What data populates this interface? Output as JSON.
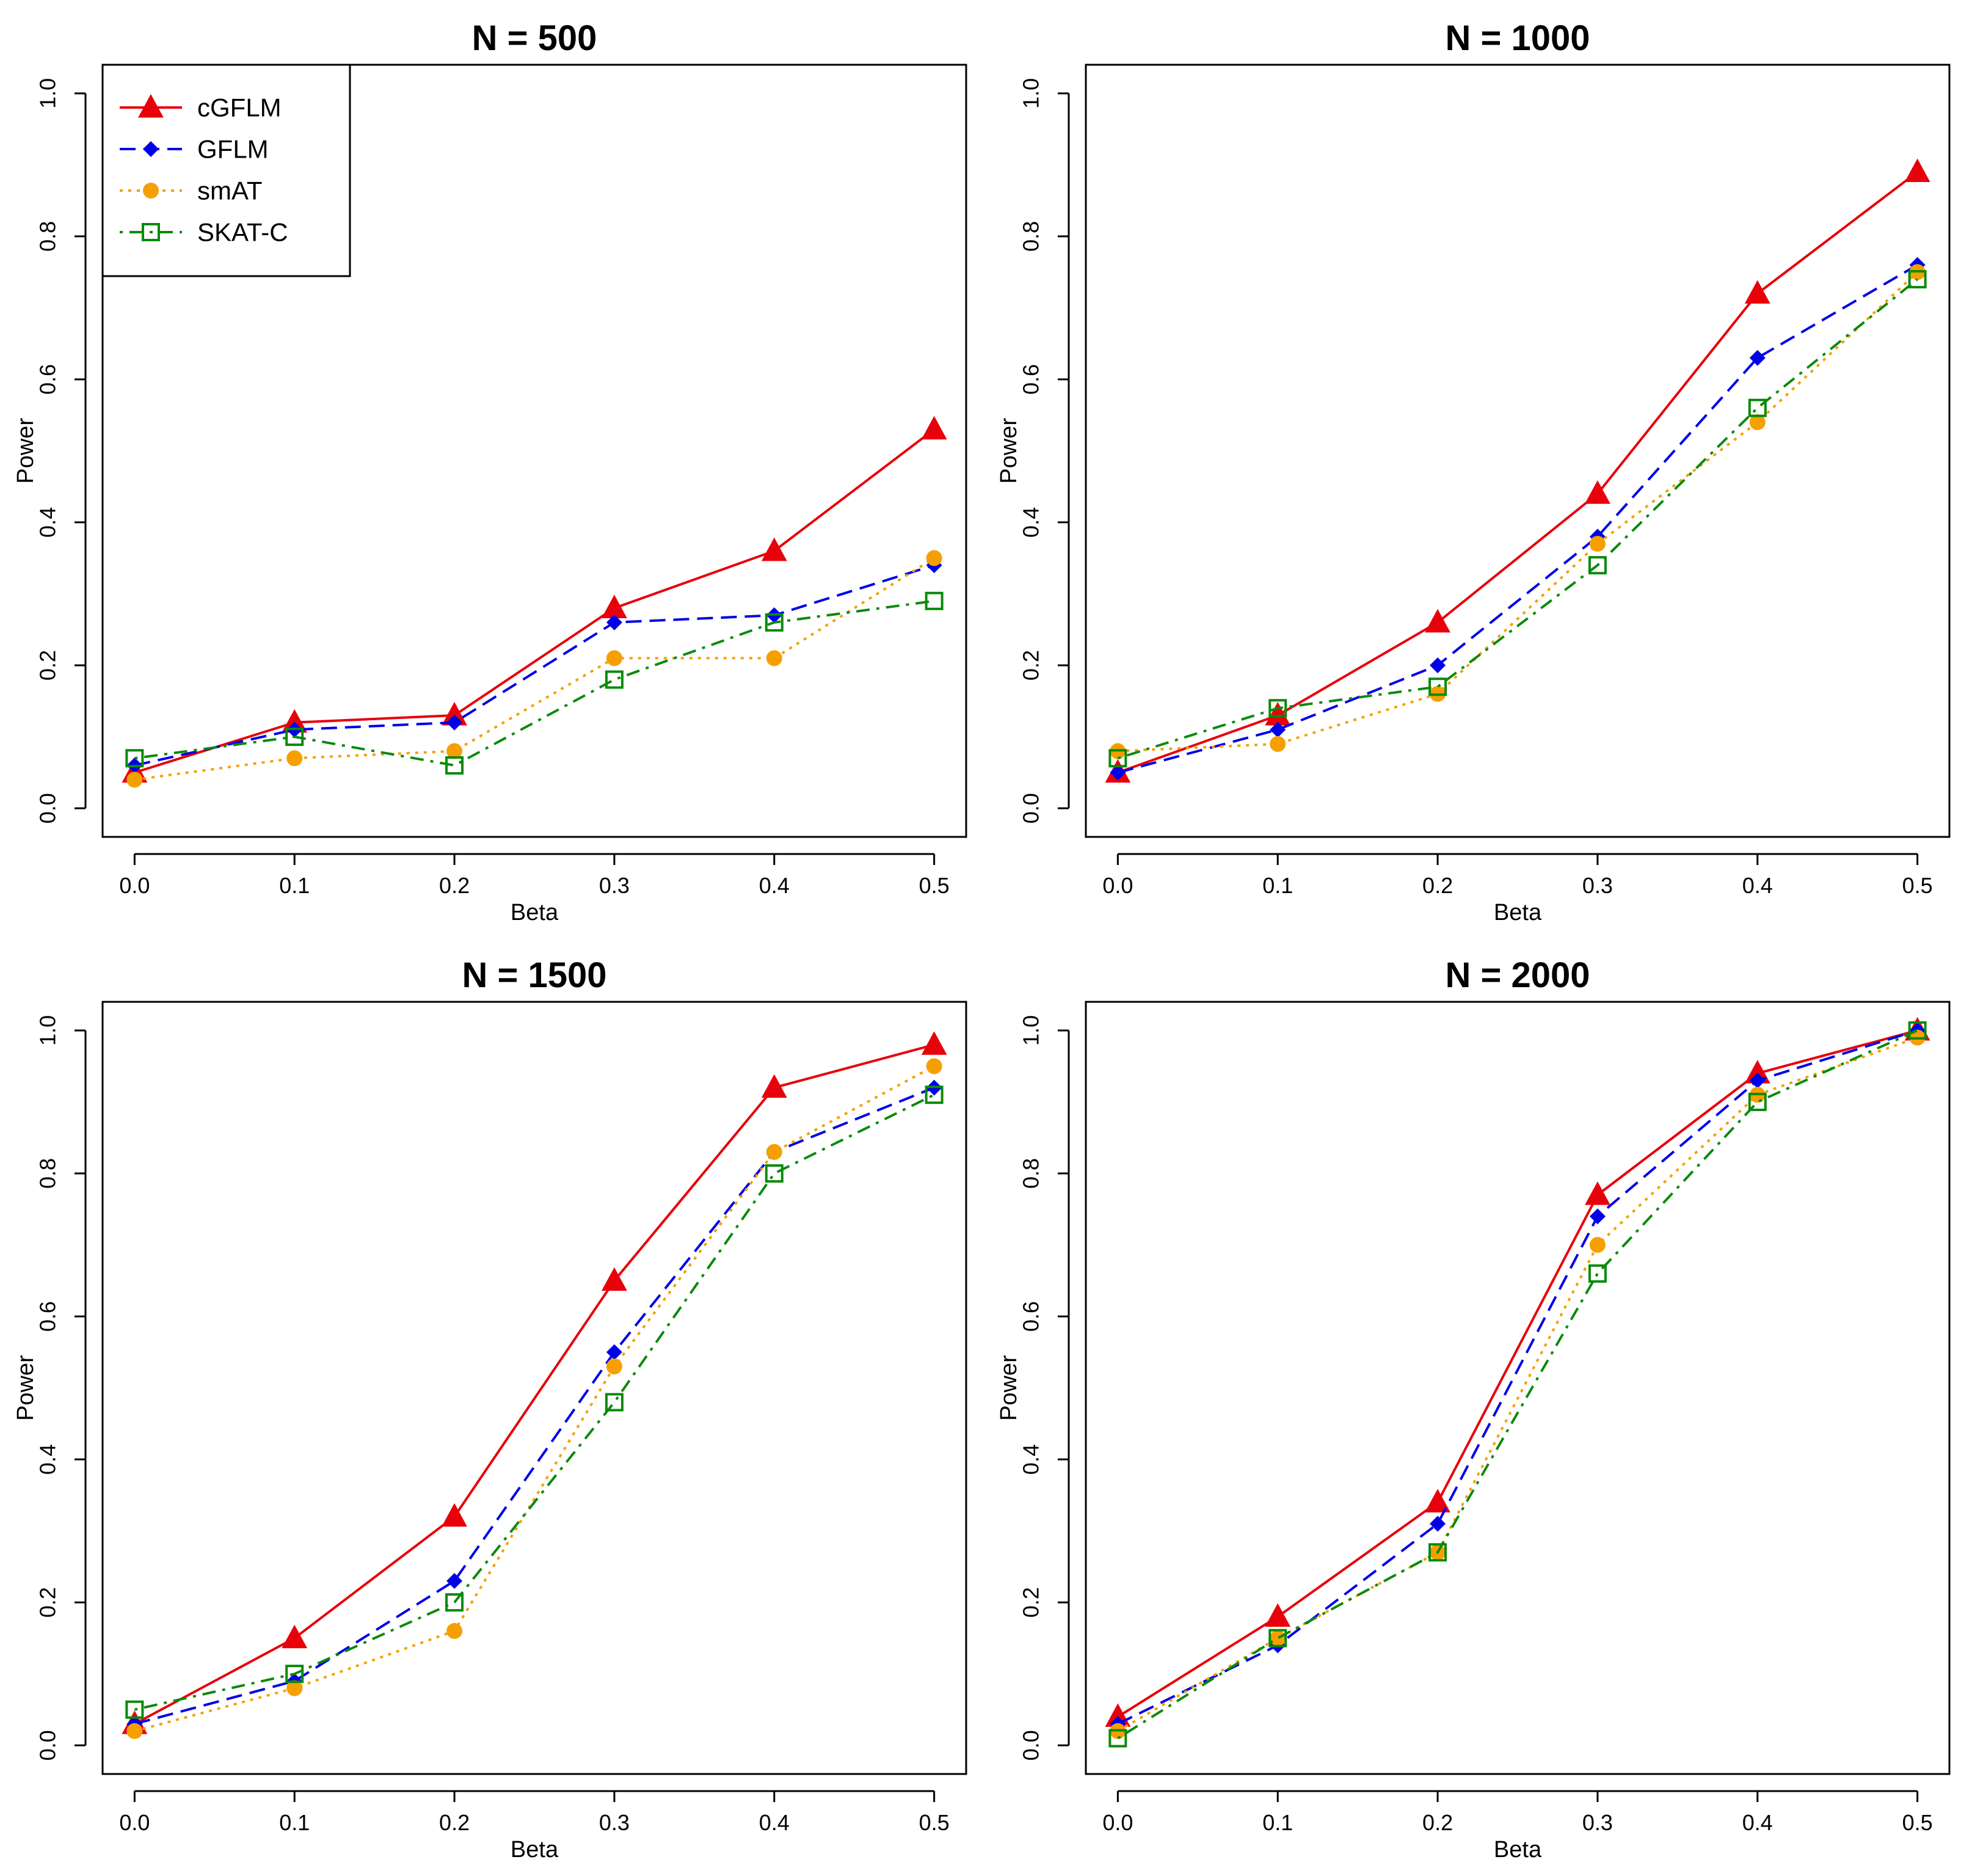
{
  "chart_data": [
    {
      "type": "line",
      "title": "N = 500",
      "xlabel": "Beta",
      "ylabel": "Power",
      "x": [
        0.0,
        0.1,
        0.2,
        0.3,
        0.4,
        0.5
      ],
      "xlim": [
        0.0,
        0.5
      ],
      "ylim": [
        0.0,
        1.0
      ],
      "xticks": [
        "0.0",
        "0.1",
        "0.2",
        "0.3",
        "0.4",
        "0.5"
      ],
      "yticks": [
        "0.0",
        "0.2",
        "0.4",
        "0.6",
        "0.8",
        "1.0"
      ],
      "legend": "top-left",
      "series": [
        {
          "name": "cGFLM",
          "values": [
            0.05,
            0.12,
            0.13,
            0.28,
            0.36,
            0.53
          ]
        },
        {
          "name": "GFLM",
          "values": [
            0.06,
            0.11,
            0.12,
            0.26,
            0.27,
            0.34
          ]
        },
        {
          "name": "smAT",
          "values": [
            0.04,
            0.07,
            0.08,
            0.21,
            0.21,
            0.35
          ]
        },
        {
          "name": "SKAT-C",
          "values": [
            0.07,
            0.1,
            0.06,
            0.18,
            0.26,
            0.29
          ]
        }
      ]
    },
    {
      "type": "line",
      "title": "N = 1000",
      "xlabel": "Beta",
      "ylabel": "Power",
      "x": [
        0.0,
        0.1,
        0.2,
        0.3,
        0.4,
        0.5
      ],
      "xlim": [
        0.0,
        0.5
      ],
      "ylim": [
        0.0,
        1.0
      ],
      "xticks": [
        "0.0",
        "0.1",
        "0.2",
        "0.3",
        "0.4",
        "0.5"
      ],
      "yticks": [
        "0.0",
        "0.2",
        "0.4",
        "0.6",
        "0.8",
        "1.0"
      ],
      "legend": "none",
      "series": [
        {
          "name": "cGFLM",
          "values": [
            0.05,
            0.13,
            0.26,
            0.44,
            0.72,
            0.89
          ]
        },
        {
          "name": "GFLM",
          "values": [
            0.05,
            0.11,
            0.2,
            0.38,
            0.63,
            0.76
          ]
        },
        {
          "name": "smAT",
          "values": [
            0.08,
            0.09,
            0.16,
            0.37,
            0.54,
            0.75
          ]
        },
        {
          "name": "SKAT-C",
          "values": [
            0.07,
            0.14,
            0.17,
            0.34,
            0.56,
            0.74
          ]
        }
      ]
    },
    {
      "type": "line",
      "title": "N = 1500",
      "xlabel": "Beta",
      "ylabel": "Power",
      "x": [
        0.0,
        0.1,
        0.2,
        0.3,
        0.4,
        0.5
      ],
      "xlim": [
        0.0,
        0.5
      ],
      "ylim": [
        0.0,
        1.0
      ],
      "xticks": [
        "0.0",
        "0.1",
        "0.2",
        "0.3",
        "0.4",
        "0.5"
      ],
      "yticks": [
        "0.0",
        "0.2",
        "0.4",
        "0.6",
        "0.8",
        "1.0"
      ],
      "legend": "none",
      "series": [
        {
          "name": "cGFLM",
          "values": [
            0.03,
            0.15,
            0.32,
            0.65,
            0.92,
            0.98
          ]
        },
        {
          "name": "GFLM",
          "values": [
            0.03,
            0.09,
            0.23,
            0.55,
            0.83,
            0.92
          ]
        },
        {
          "name": "smAT",
          "values": [
            0.02,
            0.08,
            0.16,
            0.53,
            0.83,
            0.95
          ]
        },
        {
          "name": "SKAT-C",
          "values": [
            0.05,
            0.1,
            0.2,
            0.48,
            0.8,
            0.91
          ]
        }
      ]
    },
    {
      "type": "line",
      "title": "N = 2000",
      "xlabel": "Beta",
      "ylabel": "Power",
      "x": [
        0.0,
        0.1,
        0.2,
        0.3,
        0.4,
        0.5
      ],
      "xlim": [
        0.0,
        0.5
      ],
      "ylim": [
        0.0,
        1.0
      ],
      "xticks": [
        "0.0",
        "0.1",
        "0.2",
        "0.3",
        "0.4",
        "0.5"
      ],
      "yticks": [
        "0.0",
        "0.2",
        "0.4",
        "0.6",
        "0.8",
        "1.0"
      ],
      "legend": "none",
      "series": [
        {
          "name": "cGFLM",
          "values": [
            0.04,
            0.18,
            0.34,
            0.77,
            0.94,
            1.0
          ]
        },
        {
          "name": "GFLM",
          "values": [
            0.03,
            0.14,
            0.31,
            0.74,
            0.93,
            1.0
          ]
        },
        {
          "name": "smAT",
          "values": [
            0.02,
            0.15,
            0.27,
            0.7,
            0.91,
            0.99
          ]
        },
        {
          "name": "SKAT-C",
          "values": [
            0.01,
            0.15,
            0.27,
            0.66,
            0.9,
            1.0
          ]
        }
      ]
    }
  ],
  "series_styles": [
    {
      "name": "cGFLM",
      "color": "#e8000b",
      "dash": "none",
      "marker": "triangle"
    },
    {
      "name": "GFLM",
      "color": "#0000e8",
      "dash": "dashed",
      "marker": "diamond"
    },
    {
      "name": "smAT",
      "color": "#f5a000",
      "dash": "dotted",
      "marker": "circle"
    },
    {
      "name": "SKAT-C",
      "color": "#0a8a0a",
      "dash": "dotdash",
      "marker": "open-square"
    }
  ]
}
